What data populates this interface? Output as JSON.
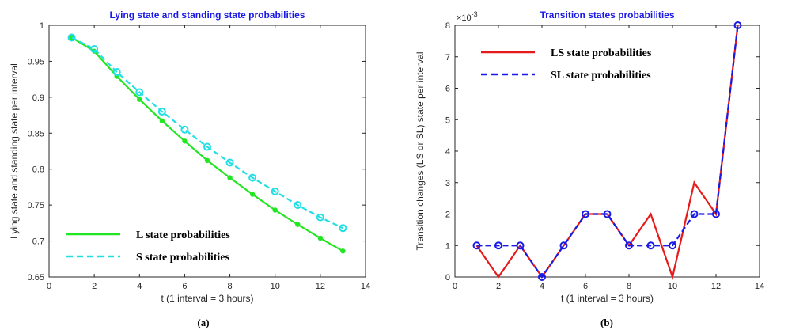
{
  "chart_data": [
    {
      "type": "line",
      "title": "Lying state and standing state probabilities",
      "xlabel": "t (1 interval = 3 hours)",
      "ylabel": "Lying state and standing state per interval",
      "caption": "(a)",
      "xlim": [
        0,
        14
      ],
      "ylim": [
        0.65,
        1
      ],
      "xticks": [
        0,
        2,
        4,
        6,
        8,
        10,
        12,
        14
      ],
      "yticks": [
        0.65,
        0.7,
        0.75,
        0.8,
        0.85,
        0.9,
        0.95,
        1
      ],
      "ytick_labels": [
        "0.65",
        "0.7",
        "0.75",
        "0.8",
        "0.85",
        "0.9",
        "0.95",
        "1"
      ],
      "x": [
        1,
        2,
        3,
        4,
        5,
        6,
        7,
        8,
        9,
        10,
        11,
        12,
        13
      ],
      "legend_position": "bottom-left",
      "grid": false,
      "series": [
        {
          "name": "L state probabilities",
          "color": "#22e622",
          "style": "solid",
          "marker": "filled-dot",
          "values": [
            0.983,
            0.964,
            0.929,
            0.897,
            0.867,
            0.839,
            0.812,
            0.788,
            0.765,
            0.743,
            0.723,
            0.704,
            0.686
          ]
        },
        {
          "name": "S state probabilities",
          "color": "#22dfe6",
          "style": "dashed",
          "marker": "open-circle",
          "values": [
            0.983,
            0.967,
            0.935,
            0.907,
            0.88,
            0.855,
            0.831,
            0.809,
            0.788,
            0.769,
            0.75,
            0.733,
            0.718
          ]
        }
      ]
    },
    {
      "type": "line",
      "title": "Transition states probabilities",
      "xlabel": "t (1 interval = 3 hours)",
      "ylabel": "Transition changes (LS or SL) state per interval",
      "caption": "(b)",
      "exponent_label": "×10",
      "exponent_power": "-3",
      "xlim": [
        0,
        14
      ],
      "ylim": [
        0,
        8
      ],
      "xticks": [
        0,
        2,
        4,
        6,
        8,
        10,
        12,
        14
      ],
      "yticks": [
        0,
        1,
        2,
        3,
        4,
        5,
        6,
        7,
        8
      ],
      "ytick_labels": [
        "0",
        "1",
        "2",
        "3",
        "4",
        "5",
        "6",
        "7",
        "8"
      ],
      "x": [
        1,
        2,
        3,
        4,
        5,
        6,
        7,
        8,
        9,
        10,
        11,
        12,
        13
      ],
      "legend_position": "top-left",
      "grid": false,
      "series": [
        {
          "name": "LS state probabilities",
          "color": "#e61a1a",
          "style": "solid",
          "marker": "none",
          "values": [
            1,
            0,
            1,
            0,
            1,
            2,
            2,
            1,
            2,
            0,
            3,
            2,
            8
          ]
        },
        {
          "name": "SL state probabilities",
          "color": "#1a1ae6",
          "style": "dashed",
          "marker": "open-circle",
          "values": [
            1,
            1,
            1,
            0,
            1,
            2,
            2,
            1,
            1,
            1,
            2,
            2,
            8
          ]
        }
      ]
    }
  ]
}
